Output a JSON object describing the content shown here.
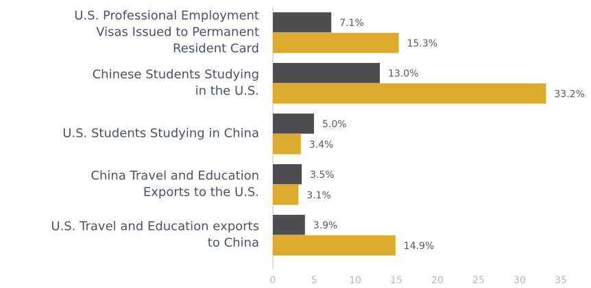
{
  "chart_data": {
    "type": "barh",
    "categories": [
      "U.S. Professional Employment\nVisas Issued to Permanent\nResident Card",
      "Chinese Students Studying\nin the U.S.",
      "U.S. Students Studying in China",
      "China Travel and Education\nExports to the U.S.",
      "U.S. Travel and Education exports\nto China"
    ],
    "series": [
      {
        "color": "#4e4e50",
        "values": [
          7.1,
          13.0,
          5.0,
          3.5,
          3.9
        ],
        "value_labels": [
          "7.1%",
          "13.0%",
          "5.0%",
          "3.5%",
          "3.9%"
        ]
      },
      {
        "color": "#dcab2e",
        "values": [
          15.3,
          33.2,
          3.4,
          3.1,
          14.9
        ],
        "value_labels": [
          "15.3%",
          "33.2%",
          "3.4%",
          "3.1%",
          "14.9%"
        ]
      }
    ],
    "xlim": [
      0,
      35
    ],
    "xticks": [
      0,
      5,
      10,
      15,
      20,
      25,
      30,
      35
    ]
  }
}
